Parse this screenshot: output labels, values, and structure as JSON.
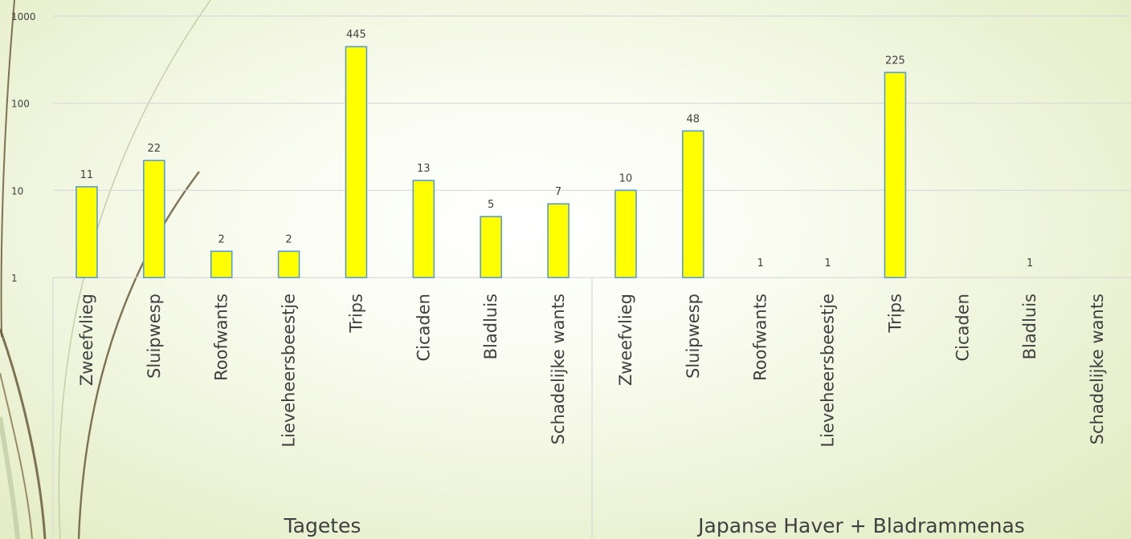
{
  "chart_data": {
    "type": "bar",
    "title": "",
    "xlabel": "",
    "ylabel": "",
    "y_scale": "log",
    "ylim": [
      1,
      1000
    ],
    "y_ticks": [
      {
        "value": 1,
        "label": "1"
      },
      {
        "value": 10,
        "label": "10"
      },
      {
        "value": 100,
        "label": "100"
      },
      {
        "value": 1000,
        "label": "1000"
      }
    ],
    "grid": true,
    "legend": "none",
    "bar_color": "#ffff00",
    "bar_edge_color": "#5b9bd5",
    "groups": [
      {
        "name": "Tagetes",
        "categories": [
          "Zweefvlieg",
          "Sluipwesp",
          "Roofwants",
          "Lieveheersbeestje",
          "Trips",
          "Cicaden",
          "Bladluis",
          "Schadelijke wants"
        ],
        "values": [
          11,
          22,
          2,
          2,
          445,
          13,
          5,
          7
        ]
      },
      {
        "name": "Japanse Haver + Bladrammenas",
        "categories": [
          "Zweefvlieg",
          "Sluipwesp",
          "Roofwants",
          "Lieveheersbeestje",
          "Trips",
          "Cicaden",
          "Bladluis",
          "Schadelijke wants"
        ],
        "values": [
          10,
          48,
          1,
          1,
          225,
          null,
          1,
          null
        ]
      }
    ]
  }
}
